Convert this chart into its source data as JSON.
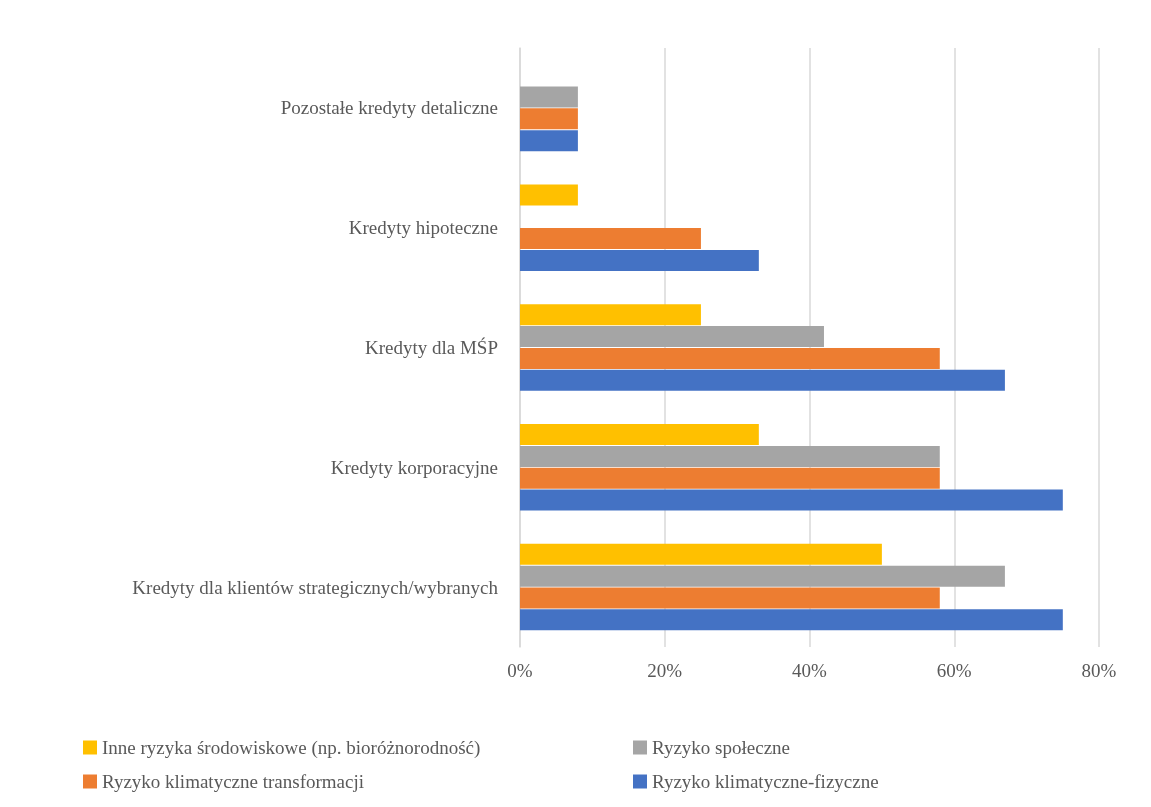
{
  "chart_data": {
    "type": "bar",
    "orientation": "horizontal",
    "categories": [
      "Pozostałe kredyty detaliczne",
      "Kredyty hipoteczne",
      "Kredyty dla MŚP",
      "Kredyty korporacyjne",
      "Kredyty dla klientów strategicznych/wybranych"
    ],
    "series": [
      {
        "name": "Inne ryzyka środowiskowe (np. bioróżnorodność)",
        "color": "#ffc000",
        "values": [
          null,
          8,
          25,
          33,
          50
        ]
      },
      {
        "name": "Ryzyko społeczne",
        "color": "#a5a5a5",
        "values": [
          8,
          null,
          42,
          58,
          67
        ]
      },
      {
        "name": "Ryzyko klimatyczne transformacji",
        "color": "#ed7d31",
        "values": [
          8,
          25,
          58,
          58,
          58
        ]
      },
      {
        "name": "Ryzyko klimatyczne-fizyczne",
        "color": "#4472c4",
        "values": [
          8,
          33,
          67,
          75,
          75
        ]
      }
    ],
    "xlim": [
      0,
      80
    ],
    "xticks": [
      {
        "value": 0,
        "label": "0%"
      },
      {
        "value": 20,
        "label": "20%"
      },
      {
        "value": 40,
        "label": "40%"
      },
      {
        "value": 60,
        "label": "60%"
      },
      {
        "value": 80,
        "label": "80%"
      }
    ],
    "grid": "x",
    "legend": "bottom"
  }
}
